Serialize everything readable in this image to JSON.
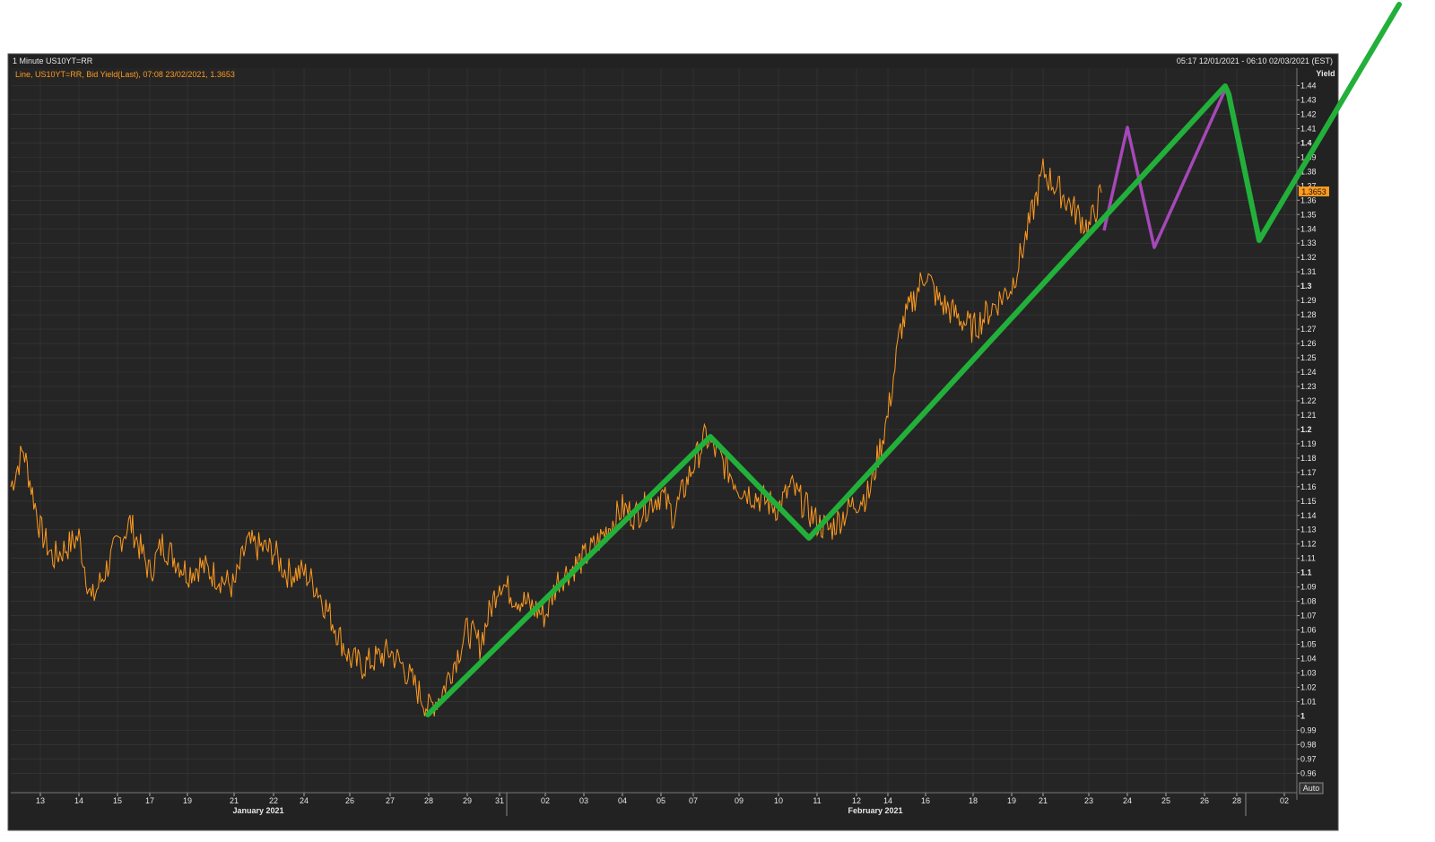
{
  "header": {
    "title": "1 Minute US10YT=RR",
    "date_range": "05:17 12/01/2021 - 06:10 02/03/2021 (EST)",
    "series_label": "Line, US10YT=RR, Bid Yield(Last), 07:08 23/02/2021, 1.3653"
  },
  "axis": {
    "y_title": "Yield",
    "auto_label": "Auto",
    "last_value_label": "1.3653"
  },
  "colors": {
    "panel_bg": "#222222",
    "grid": "#3a3a3a",
    "series": "#ff9a1f",
    "trend_green": "#22b03a",
    "trend_purple": "#a548b8"
  },
  "chart_data": {
    "type": "line",
    "title": "1 Minute US10YT=RR",
    "ylabel": "Yield",
    "ylim": [
      0.955,
      1.45
    ],
    "y_ticks": [
      "0.96",
      "0.97",
      "0.98",
      "0.99",
      "1",
      "1.01",
      "1.02",
      "1.03",
      "1.04",
      "1.05",
      "1.06",
      "1.07",
      "1.08",
      "1.09",
      "1.1",
      "1.11",
      "1.12",
      "1.13",
      "1.14",
      "1.15",
      "1.16",
      "1.17",
      "1.18",
      "1.19",
      "1.2",
      "1.21",
      "1.22",
      "1.23",
      "1.24",
      "1.25",
      "1.26",
      "1.27",
      "1.28",
      "1.29",
      "1.3",
      "1.31",
      "1.32",
      "1.33",
      "1.34",
      "1.35",
      "1.36",
      "1.37",
      "1.38",
      "1.39",
      "1.4",
      "1.41",
      "1.42",
      "1.43",
      "1.44"
    ],
    "x_ticks": [
      "13",
      "14",
      "15",
      "17",
      "19",
      "21",
      "22",
      "24",
      "26",
      "27",
      "28",
      "29",
      "31",
      "02",
      "03",
      "04",
      "05",
      "07",
      "09",
      "10",
      "11",
      "12",
      "14",
      "16",
      "18",
      "19",
      "21",
      "23",
      "24",
      "25",
      "26",
      "28",
      "02"
    ],
    "months": [
      "January 2021",
      "February 2021"
    ],
    "series": [
      {
        "name": "US10YT=RR, Bid Yield(Last)",
        "points": [
          [
            "12 Jan",
            1.16
          ],
          [
            "12 Jan",
            1.186
          ],
          [
            "13 Jan",
            1.13
          ],
          [
            "13 Jan",
            1.11
          ],
          [
            "14 Jan",
            1.125
          ],
          [
            "14 Jan",
            1.08
          ],
          [
            "15 Jan",
            1.12
          ],
          [
            "15 Jan",
            1.135
          ],
          [
            "17 Jan",
            1.1
          ],
          [
            "17 Jan",
            1.12
          ],
          [
            "19 Jan",
            1.1
          ],
          [
            "19 Jan",
            1.105
          ],
          [
            "21 Jan",
            1.09
          ],
          [
            "21 Jan",
            1.12
          ],
          [
            "22 Jan",
            1.115
          ],
          [
            "22 Jan",
            1.1
          ],
          [
            "24 Jan",
            1.1
          ],
          [
            "24 Jan",
            1.09
          ],
          [
            "26 Jan",
            1.04
          ],
          [
            "26 Jan",
            1.035
          ],
          [
            "27 Jan",
            1.045
          ],
          [
            "27 Jan",
            1.035
          ],
          [
            "28 Jan",
            1.005
          ],
          [
            "28 Jan",
            1.015
          ],
          [
            "29 Jan",
            1.06
          ],
          [
            "29 Jan",
            1.05
          ],
          [
            "31 Jan",
            1.095
          ],
          [
            "31 Jan",
            1.085
          ],
          [
            "02 Feb",
            1.07
          ],
          [
            "02 Feb",
            1.095
          ],
          [
            "03 Feb",
            1.11
          ],
          [
            "03 Feb",
            1.12
          ],
          [
            "04 Feb",
            1.145
          ],
          [
            "04 Feb",
            1.14
          ],
          [
            "05 Feb",
            1.155
          ],
          [
            "05 Feb",
            1.14
          ],
          [
            "07 Feb",
            1.175
          ],
          [
            "07 Feb",
            1.195
          ],
          [
            "09 Feb",
            1.16
          ],
          [
            "09 Feb",
            1.155
          ],
          [
            "10 Feb",
            1.145
          ],
          [
            "10 Feb",
            1.16
          ],
          [
            "11 Feb",
            1.135
          ],
          [
            "11 Feb",
            1.13
          ],
          [
            "12 Feb",
            1.15
          ],
          [
            "12 Feb",
            1.155
          ],
          [
            "14 Feb",
            1.21
          ],
          [
            "14 Feb",
            1.27
          ],
          [
            "16 Feb",
            1.31
          ],
          [
            "16 Feb",
            1.29
          ],
          [
            "18 Feb",
            1.27
          ],
          [
            "18 Feb",
            1.28
          ],
          [
            "19 Feb",
            1.3
          ],
          [
            "19 Feb",
            1.33
          ],
          [
            "21 Feb",
            1.38
          ],
          [
            "21 Feb",
            1.37
          ],
          [
            "23 Feb",
            1.34
          ],
          [
            "23 Feb",
            1.3653
          ]
        ]
      },
      {
        "name": "green zigzag",
        "points": [
          [
            "28 Jan",
            1.002
          ],
          [
            "07 Feb",
            1.195
          ],
          [
            "11 Feb",
            1.125
          ],
          [
            "28 Feb",
            1.44
          ],
          [
            "01 Mar",
            1.33
          ],
          [
            "02 Mar",
            1.39
          ]
        ]
      },
      {
        "name": "purple zigzag",
        "points": [
          [
            "23 Feb",
            1.34
          ],
          [
            "24 Feb",
            1.41
          ],
          [
            "25 Feb",
            1.33
          ],
          [
            "28 Feb",
            1.44
          ]
        ]
      }
    ],
    "grid": true,
    "legend": "none"
  }
}
